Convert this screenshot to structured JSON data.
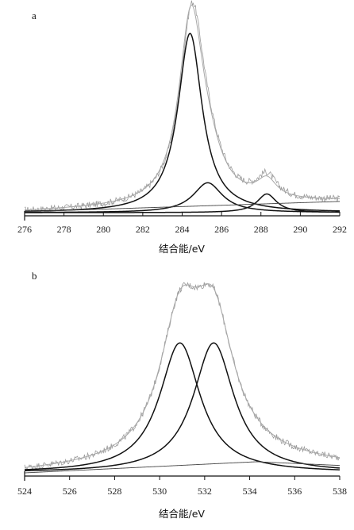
{
  "chart_data": [
    {
      "type": "line",
      "panel_label": "a",
      "xlabel": "结合能/eV",
      "ylabel": "",
      "xlim": [
        276,
        292
      ],
      "xticks": [
        276,
        278,
        280,
        282,
        284,
        286,
        288,
        290,
        292
      ],
      "y_axis_labels_shown": false,
      "series": [
        {
          "role": "raw",
          "style": "gray-noisy",
          "peaks": [
            {
              "center": 284.5,
              "height": 1.0,
              "width": 0.75
            },
            {
              "center": 285.3,
              "height": 0.16,
              "width": 0.9
            },
            {
              "center": 288.3,
              "height": 0.12,
              "width": 0.6
            }
          ],
          "baseline": [
            [
              276,
              0.005
            ],
            [
              292,
              0.06
            ]
          ]
        },
        {
          "role": "fit-envelope",
          "style": "gray-smooth",
          "peaks": [
            {
              "center": 284.45,
              "height": 0.99,
              "width": 0.75
            },
            {
              "center": 285.3,
              "height": 0.16,
              "width": 0.9
            },
            {
              "center": 288.3,
              "height": 0.1,
              "width": 0.6
            }
          ],
          "baseline": [
            [
              276,
              0.005
            ],
            [
              292,
              0.06
            ]
          ]
        },
        {
          "role": "component",
          "center": 284.4,
          "height": 0.96,
          "width": 0.75
        },
        {
          "role": "component",
          "center": 285.3,
          "height": 0.16,
          "width": 0.9
        },
        {
          "role": "component",
          "center": 288.3,
          "height": 0.1,
          "width": 0.6
        },
        {
          "role": "background",
          "points": [
            [
              276,
              0.005
            ],
            [
              292,
              0.06
            ]
          ]
        }
      ]
    },
    {
      "type": "line",
      "panel_label": "b",
      "xlabel": "结合能/eV",
      "ylabel": "",
      "xlim": [
        524,
        538
      ],
      "xticks": [
        524,
        526,
        528,
        530,
        532,
        534,
        536,
        538
      ],
      "y_axis_labels_shown": false,
      "series": [
        {
          "role": "raw",
          "style": "gray-noisy",
          "peaks": [
            {
              "center": 530.9,
              "height": 0.7,
              "width": 1.1
            },
            {
              "center": 532.4,
              "height": 0.7,
              "width": 1.1
            }
          ],
          "baseline": [
            [
              524,
              0.0
            ],
            [
              534.3,
              0.06
            ],
            [
              538,
              0.04
            ]
          ]
        },
        {
          "role": "fit-envelope",
          "style": "gray-smooth",
          "peaks": [
            {
              "center": 530.9,
              "height": 0.7,
              "width": 1.1
            },
            {
              "center": 532.4,
              "height": 0.7,
              "width": 1.1
            }
          ],
          "baseline": [
            [
              524,
              0.0
            ],
            [
              534.3,
              0.06
            ],
            [
              538,
              0.04
            ]
          ]
        },
        {
          "role": "component",
          "center": 530.9,
          "height": 0.7,
          "width": 1.1
        },
        {
          "role": "component",
          "center": 532.4,
          "height": 0.7,
          "width": 1.1
        },
        {
          "role": "background",
          "points": [
            [
              524,
              0.0
            ],
            [
              534.3,
              0.06
            ],
            [
              538,
              0.04
            ]
          ]
        }
      ]
    }
  ],
  "colors": {
    "raw": "#9a9a9a",
    "envelope": "#a8a8a8",
    "component": "#111111",
    "background": "#444444",
    "axis": "#111111"
  }
}
